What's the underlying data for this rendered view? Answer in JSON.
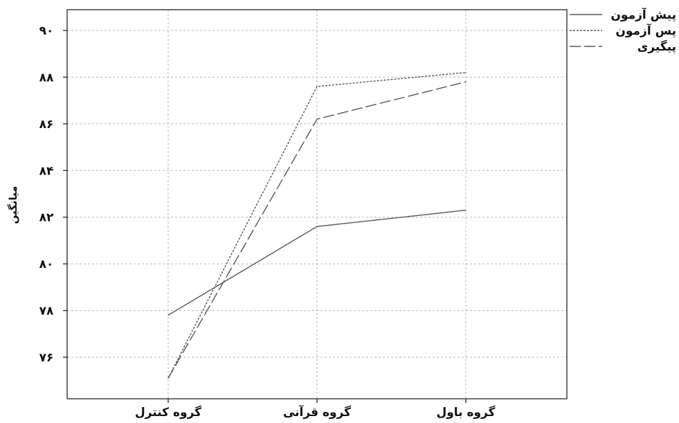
{
  "chart_data": {
    "type": "line",
    "title": "",
    "xlabel": "",
    "ylabel": "میانگین",
    "categories": [
      "گروه کنترل",
      "گروه قرآنی",
      "گروه باول"
    ],
    "y_ticks": [
      "۷۶",
      "۷۸",
      "۸۰",
      "۸۲",
      "۸۴",
      "۸۶",
      "۸۸",
      "۹۰"
    ],
    "y_tick_values": [
      76,
      78,
      80,
      82,
      84,
      86,
      88,
      90
    ],
    "ylim": [
      75,
      92
    ],
    "grid": true,
    "legend_position": "top-right",
    "series": [
      {
        "name": "پیش آزمون",
        "values": [
          77.8,
          81.6,
          82.3
        ],
        "color": "#555555",
        "dash": "solid"
      },
      {
        "name": "پس آزمون",
        "values": [
          75.1,
          87.6,
          88.2
        ],
        "color": "#555555",
        "dash": "dotted"
      },
      {
        "name": "پیگیری",
        "values": [
          75.1,
          86.2,
          87.8
        ],
        "color": "#555555",
        "dash": "long-dash"
      }
    ]
  }
}
